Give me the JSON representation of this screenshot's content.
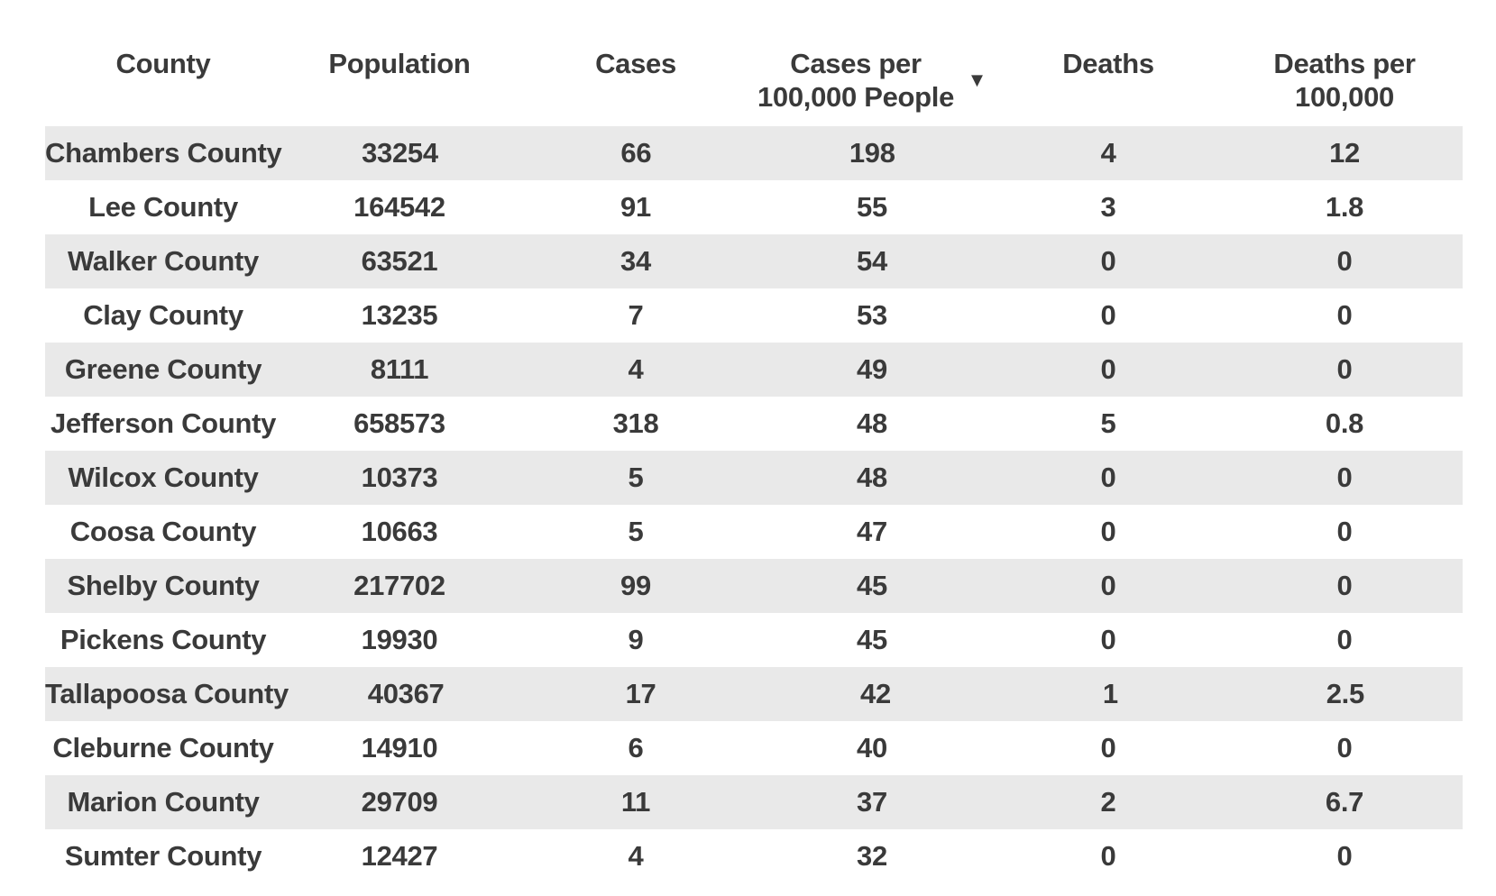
{
  "chart_data": {
    "type": "table",
    "columns": [
      "County",
      "Population",
      "Cases",
      "Cases per 100,000 People",
      "Deaths",
      "Deaths per 100,000"
    ],
    "sorted_by": "Cases per 100,000 People",
    "sort_order": "descending",
    "rows": [
      [
        "Chambers County",
        "33254",
        "66",
        "198",
        "4",
        "12"
      ],
      [
        "Lee County",
        "164542",
        "91",
        "55",
        "3",
        "1.8"
      ],
      [
        "Walker County",
        "63521",
        "34",
        "54",
        "0",
        "0"
      ],
      [
        "Clay County",
        "13235",
        "7",
        "53",
        "0",
        "0"
      ],
      [
        "Greene County",
        "8111",
        "4",
        "49",
        "0",
        "0"
      ],
      [
        "Jefferson County",
        "658573",
        "318",
        "48",
        "5",
        "0.8"
      ],
      [
        "Wilcox County",
        "10373",
        "5",
        "48",
        "0",
        "0"
      ],
      [
        "Coosa County",
        "10663",
        "5",
        "47",
        "0",
        "0"
      ],
      [
        "Shelby County",
        "217702",
        "99",
        "45",
        "0",
        "0"
      ],
      [
        "Pickens County",
        "19930",
        "9",
        "45",
        "0",
        "0"
      ],
      [
        "Tallapoosa County",
        "40367",
        "17",
        "42",
        "1",
        "2.5"
      ],
      [
        "Cleburne County",
        "14910",
        "6",
        "40",
        "0",
        "0"
      ],
      [
        "Marion County",
        "29709",
        "11",
        "37",
        "2",
        "6.7"
      ],
      [
        "Sumter County",
        "12427",
        "4",
        "32",
        "0",
        "0"
      ]
    ]
  },
  "table": {
    "sort_icon": "▼",
    "columns": [
      {
        "id": "county",
        "line1": "County",
        "line2": ""
      },
      {
        "id": "population",
        "line1": "Population",
        "line2": ""
      },
      {
        "id": "cases",
        "line1": "Cases",
        "line2": ""
      },
      {
        "id": "cases-per-100k",
        "line1": "Cases per",
        "line2": "100,000 People"
      },
      {
        "id": "deaths",
        "line1": "Deaths",
        "line2": ""
      },
      {
        "id": "deaths-per-100k",
        "line1": "Deaths per",
        "line2": "100,000"
      }
    ]
  },
  "colors": {
    "stripe": "#e9e9e9",
    "text": "#3a3a3a",
    "background": "#ffffff"
  }
}
